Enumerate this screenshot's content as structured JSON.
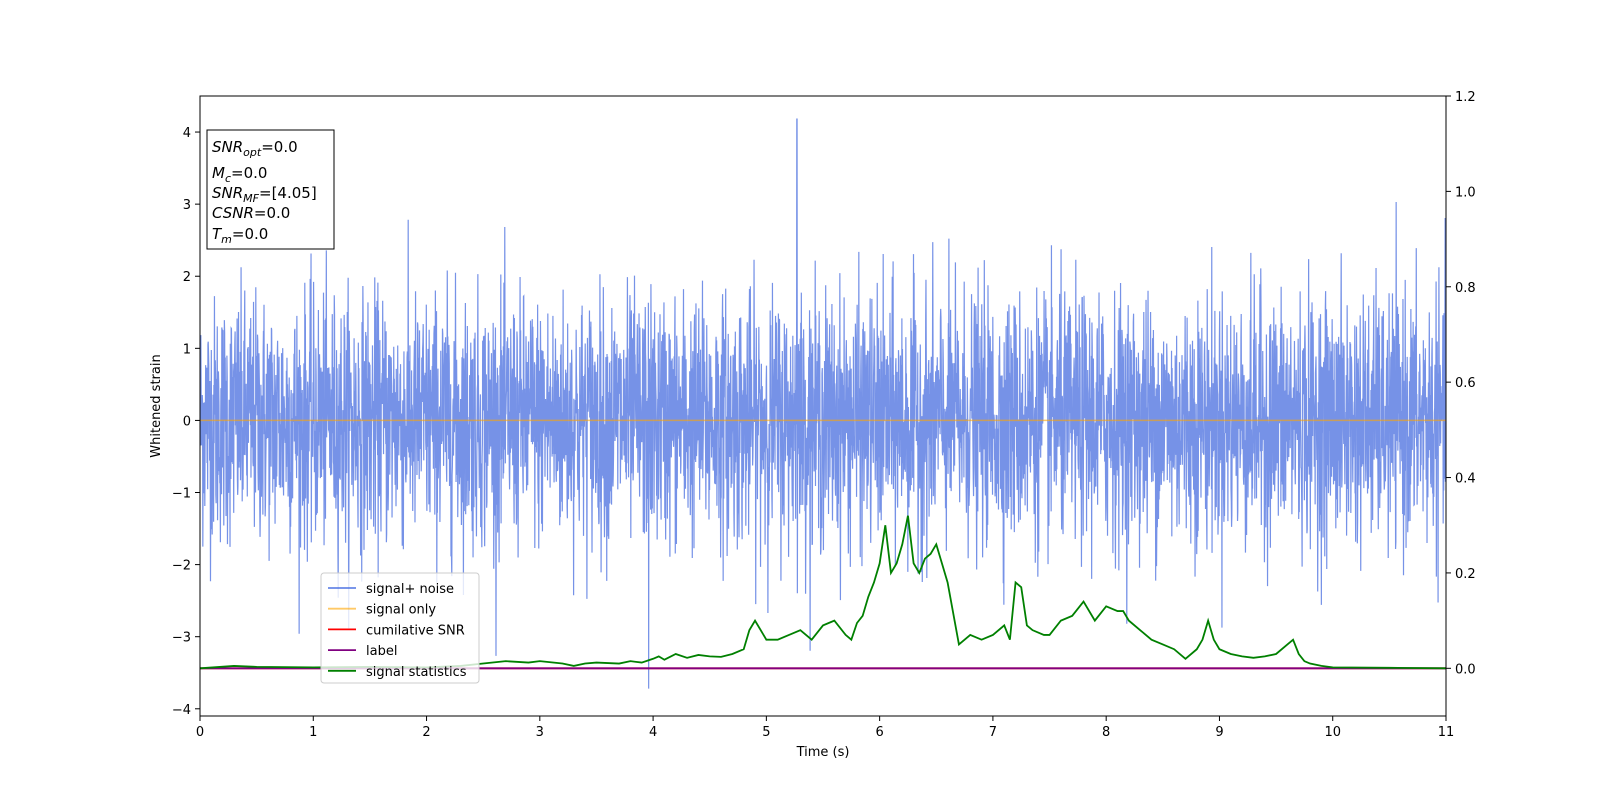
{
  "chart_data": {
    "type": "line",
    "xlabel": "Time (s)",
    "ylabel": "Whitened strain",
    "xlim": [
      0,
      11
    ],
    "ylim": [
      -4.1,
      4.5
    ],
    "y2lim": [
      -0.1,
      1.2
    ],
    "x_ticks": [
      "0",
      "1",
      "2",
      "3",
      "4",
      "5",
      "6",
      "7",
      "8",
      "9",
      "10",
      "11"
    ],
    "y_ticks": [
      "4",
      "3",
      "2",
      "1",
      "0",
      "−1",
      "−2",
      "−3",
      "−4"
    ],
    "y2_ticks": [
      "1.2",
      "1.0",
      "0.8",
      "0.6",
      "0.4",
      "0.2",
      "0.0"
    ],
    "info_box": {
      "snr_opt": {
        "base": "SNR",
        "sub": "opt",
        "value": "=0.0"
      },
      "mc": {
        "base": "M",
        "sub": "c",
        "value": "=0.0"
      },
      "snr_mf": {
        "base": "SNR",
        "sub": "MF",
        "value": "=[4.05]"
      },
      "csnr": {
        "base": "CSNR",
        "value": "=0.0"
      },
      "tm": {
        "base": "T",
        "sub": "m",
        "value": "=0.0"
      }
    },
    "legend": {
      "placement": "lower-left",
      "entries": [
        {
          "label": "signal+ noise",
          "color": "#4169e1"
        },
        {
          "label": "signal only",
          "color": "#ffa500"
        },
        {
          "label": "cumilative SNR",
          "color": "#ff0000"
        },
        {
          "label": "label",
          "color": "#800080"
        },
        {
          "label": "signal statistics",
          "color": "#008000"
        }
      ]
    },
    "series": [
      {
        "name": "signal+ noise",
        "axis": "left",
        "color": "#6f8ce6",
        "noise": {
          "std": 0.85,
          "positive_peak": 4.18,
          "negative_peak": -3.72,
          "peak_time_pos": 5.27,
          "peak_time_neg": 3.96
        }
      },
      {
        "name": "signal only",
        "axis": "left",
        "color": "#ffa500",
        "x": [
          0,
          11
        ],
        "y": [
          0,
          0
        ]
      },
      {
        "name": "cumilative SNR",
        "axis": "right",
        "color": "#ff0000",
        "x": [
          0,
          11
        ],
        "y": [
          0,
          0
        ]
      },
      {
        "name": "label",
        "axis": "right",
        "color": "#800080",
        "x": [
          0,
          11
        ],
        "y": [
          0,
          0
        ]
      },
      {
        "name": "signal statistics",
        "axis": "right",
        "color": "#008000",
        "x": [
          0,
          0.3,
          0.5,
          1.0,
          1.5,
          2.0,
          2.3,
          2.5,
          2.7,
          2.9,
          3.0,
          3.2,
          3.3,
          3.4,
          3.5,
          3.7,
          3.8,
          3.9,
          4.0,
          4.05,
          4.1,
          4.2,
          4.3,
          4.4,
          4.5,
          4.6,
          4.7,
          4.8,
          4.85,
          4.9,
          5.0,
          5.1,
          5.2,
          5.3,
          5.4,
          5.5,
          5.6,
          5.7,
          5.75,
          5.8,
          5.85,
          5.9,
          5.95,
          6.0,
          6.05,
          6.1,
          6.15,
          6.2,
          6.25,
          6.3,
          6.35,
          6.4,
          6.45,
          6.5,
          6.55,
          6.6,
          6.7,
          6.8,
          6.9,
          7.0,
          7.1,
          7.15,
          7.2,
          7.25,
          7.3,
          7.35,
          7.4,
          7.45,
          7.5,
          7.6,
          7.7,
          7.8,
          7.9,
          8.0,
          8.1,
          8.15,
          8.2,
          8.3,
          8.4,
          8.5,
          8.6,
          8.7,
          8.8,
          8.85,
          8.9,
          8.95,
          9.0,
          9.1,
          9.2,
          9.3,
          9.4,
          9.5,
          9.6,
          9.65,
          9.7,
          9.75,
          9.8,
          9.9,
          10.0,
          10.5,
          11.0
        ],
        "y": [
          0.0,
          0.005,
          0.003,
          0.002,
          0.003,
          0.002,
          0.005,
          0.01,
          0.015,
          0.012,
          0.015,
          0.01,
          0.005,
          0.01,
          0.012,
          0.01,
          0.015,
          0.012,
          0.02,
          0.025,
          0.018,
          0.03,
          0.022,
          0.028,
          0.025,
          0.024,
          0.03,
          0.04,
          0.08,
          0.1,
          0.06,
          0.06,
          0.07,
          0.08,
          0.06,
          0.09,
          0.1,
          0.07,
          0.06,
          0.095,
          0.11,
          0.15,
          0.18,
          0.22,
          0.3,
          0.2,
          0.22,
          0.26,
          0.32,
          0.22,
          0.2,
          0.23,
          0.24,
          0.26,
          0.22,
          0.18,
          0.05,
          0.07,
          0.06,
          0.07,
          0.09,
          0.06,
          0.18,
          0.17,
          0.09,
          0.08,
          0.075,
          0.07,
          0.07,
          0.1,
          0.11,
          0.14,
          0.1,
          0.13,
          0.12,
          0.12,
          0.1,
          0.08,
          0.06,
          0.05,
          0.04,
          0.02,
          0.04,
          0.06,
          0.1,
          0.06,
          0.04,
          0.03,
          0.025,
          0.022,
          0.025,
          0.03,
          0.05,
          0.06,
          0.03,
          0.015,
          0.01,
          0.005,
          0.002,
          0.001,
          0.0
        ]
      }
    ]
  }
}
